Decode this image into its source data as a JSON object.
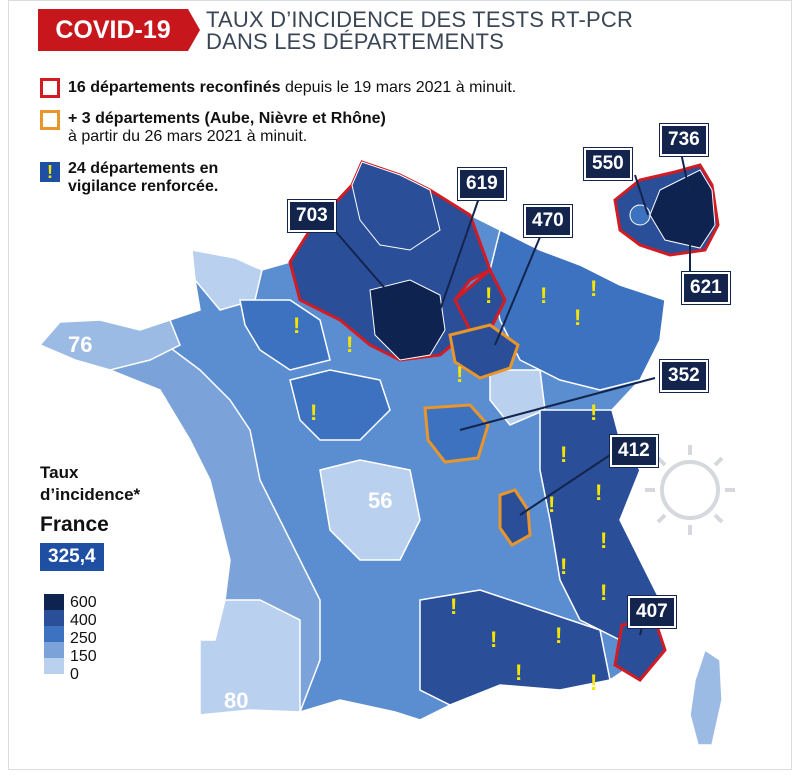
{
  "header": {
    "badge": "COVID-19",
    "title_line1": "TAUX D’INCIDENCE DES TESTS RT-PCR",
    "title_line2": "DANS LES DÉPARTEMENTS"
  },
  "legend": {
    "reconfines_bold": "16 départements reconfinés",
    "reconfines_rest": " depuis le 19 mars 2021 à minuit.",
    "plus3_bold": "+ 3 départements (Aube, Nièvre et Rhône)",
    "plus3_rest": "à partir du 26 mars 2021 à minuit.",
    "vigilance_line1": "24 départements en",
    "vigilance_line2": "vigilance renforcée.",
    "vigilance_symbol": "!"
  },
  "callouts": {
    "c703": "703",
    "c619": "619",
    "c470": "470",
    "c550": "550",
    "c736": "736",
    "c621": "621",
    "c352": "352",
    "c412": "412",
    "c407": "407"
  },
  "map_labels": {
    "l76": "76",
    "l56": "56",
    "l80": "80"
  },
  "incidence_box": {
    "label_line1": "Taux",
    "label_line2": "d’incidence*",
    "france": "France",
    "france_value": "325,4"
  },
  "scale": [
    {
      "label": "600",
      "color": "#0f2350"
    },
    {
      "label": "400",
      "color": "#2a4f98"
    },
    {
      "label": "250",
      "color": "#3c72c0"
    },
    {
      "label": "150",
      "color": "#7ba3da"
    },
    {
      "label": "0",
      "color": "#b9d0ee"
    }
  ],
  "colors": {
    "reconfined_border": "#d01c22",
    "plus3_border": "#e8952b",
    "vigilance_mark": "#f5e400",
    "badge": "#c8161d"
  }
}
